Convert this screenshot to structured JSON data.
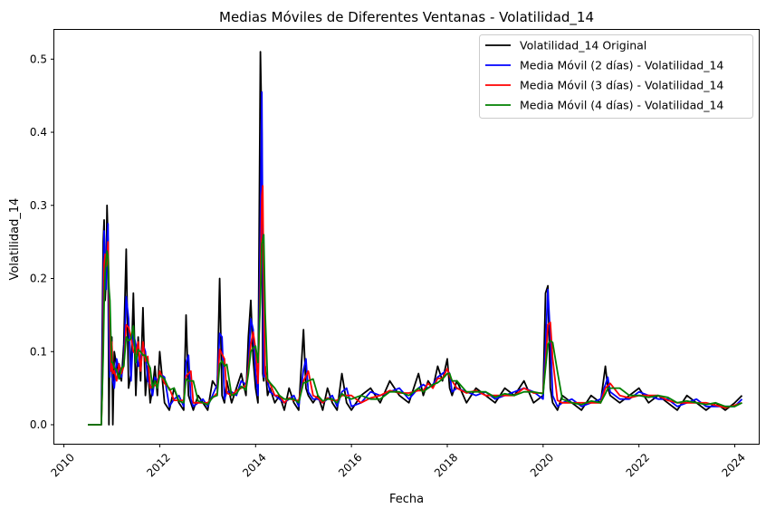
{
  "chart_data": {
    "type": "line",
    "title": "Medias Móviles de Diferentes Ventanas - Volatilidad_14",
    "xlabel": "Fecha",
    "ylabel": "Volatilidad_14",
    "xlim": [
      2009.8,
      2024.5
    ],
    "ylim": [
      -0.026,
      0.54
    ],
    "x_ticks": [
      "2010",
      "2012",
      "2014",
      "2016",
      "2018",
      "2020",
      "2022",
      "2024"
    ],
    "y_ticks": [
      "0.0",
      "0.1",
      "0.2",
      "0.3",
      "0.4",
      "0.5"
    ],
    "legend_position": "top-right",
    "grid": false,
    "series": [
      {
        "name": "Volatilidad_14 Original",
        "color": "#000000"
      },
      {
        "name": "Media Móvil (2 días) - Volatilidad_14",
        "color": "#0000ff"
      },
      {
        "name": "Media Móvil (3 días) - Volatilidad_14",
        "color": "#ff0000"
      },
      {
        "name": "Media Móvil (4 días) - Volatilidad_14",
        "color": "#008000"
      }
    ],
    "x": [
      2010.5,
      2010.78,
      2010.8,
      2010.82,
      2010.84,
      2010.86,
      2010.88,
      2010.9,
      2010.92,
      2010.94,
      2010.96,
      2010.98,
      2011.0,
      2011.02,
      2011.05,
      2011.1,
      2011.15,
      2011.2,
      2011.25,
      2011.3,
      2011.35,
      2011.4,
      2011.45,
      2011.5,
      2011.55,
      2011.6,
      2011.65,
      2011.7,
      2011.75,
      2011.8,
      2011.85,
      2011.9,
      2011.95,
      2012.0,
      2012.1,
      2012.2,
      2012.3,
      2012.4,
      2012.5,
      2012.55,
      2012.6,
      2012.65,
      2012.7,
      2012.8,
      2012.9,
      2013.0,
      2013.1,
      2013.2,
      2013.25,
      2013.3,
      2013.35,
      2013.4,
      2013.5,
      2013.6,
      2013.7,
      2013.8,
      2013.85,
      2013.9,
      2013.95,
      2014.0,
      2014.05,
      2014.1,
      2014.13,
      2014.15,
      2014.17,
      2014.2,
      2014.25,
      2014.3,
      2014.4,
      2014.5,
      2014.6,
      2014.7,
      2014.8,
      2014.9,
      2015.0,
      2015.05,
      2015.1,
      2015.2,
      2015.3,
      2015.4,
      2015.5,
      2015.6,
      2015.7,
      2015.8,
      2015.9,
      2016.0,
      2016.2,
      2016.4,
      2016.6,
      2016.8,
      2017.0,
      2017.2,
      2017.4,
      2017.5,
      2017.6,
      2017.7,
      2017.8,
      2017.9,
      2018.0,
      2018.05,
      2018.1,
      2018.2,
      2018.4,
      2018.6,
      2018.8,
      2019.0,
      2019.2,
      2019.4,
      2019.6,
      2019.8,
      2020.0,
      2020.05,
      2020.1,
      2020.15,
      2020.2,
      2020.3,
      2020.4,
      2020.6,
      2020.8,
      2021.0,
      2021.2,
      2021.3,
      2021.35,
      2021.4,
      2021.6,
      2021.8,
      2022.0,
      2022.2,
      2022.4,
      2022.6,
      2022.8,
      2023.0,
      2023.2,
      2023.4,
      2023.6,
      2023.8,
      2024.0,
      2024.15
    ],
    "values": [
      0.0,
      0.0,
      0.13,
      0.25,
      0.28,
      0.17,
      0.2,
      0.3,
      0.25,
      0.0,
      0.13,
      0.09,
      0.12,
      0.0,
      0.1,
      0.08,
      0.07,
      0.06,
      0.11,
      0.24,
      0.05,
      0.07,
      0.18,
      0.04,
      0.12,
      0.06,
      0.16,
      0.04,
      0.08,
      0.03,
      0.05,
      0.08,
      0.04,
      0.1,
      0.03,
      0.02,
      0.05,
      0.03,
      0.02,
      0.15,
      0.04,
      0.03,
      0.02,
      0.04,
      0.03,
      0.02,
      0.06,
      0.05,
      0.2,
      0.04,
      0.03,
      0.06,
      0.03,
      0.05,
      0.07,
      0.04,
      0.12,
      0.17,
      0.09,
      0.05,
      0.03,
      0.51,
      0.4,
      0.07,
      0.06,
      0.08,
      0.04,
      0.05,
      0.03,
      0.04,
      0.02,
      0.05,
      0.03,
      0.02,
      0.13,
      0.05,
      0.04,
      0.03,
      0.04,
      0.02,
      0.05,
      0.03,
      0.02,
      0.07,
      0.03,
      0.02,
      0.04,
      0.05,
      0.03,
      0.06,
      0.04,
      0.03,
      0.07,
      0.04,
      0.06,
      0.05,
      0.08,
      0.06,
      0.09,
      0.05,
      0.04,
      0.06,
      0.03,
      0.05,
      0.04,
      0.03,
      0.05,
      0.04,
      0.06,
      0.03,
      0.04,
      0.18,
      0.19,
      0.05,
      0.03,
      0.02,
      0.04,
      0.03,
      0.02,
      0.04,
      0.03,
      0.08,
      0.05,
      0.04,
      0.03,
      0.04,
      0.05,
      0.03,
      0.04,
      0.03,
      0.02,
      0.04,
      0.03,
      0.02,
      0.03,
      0.02,
      0.03,
      0.04
    ]
  }
}
